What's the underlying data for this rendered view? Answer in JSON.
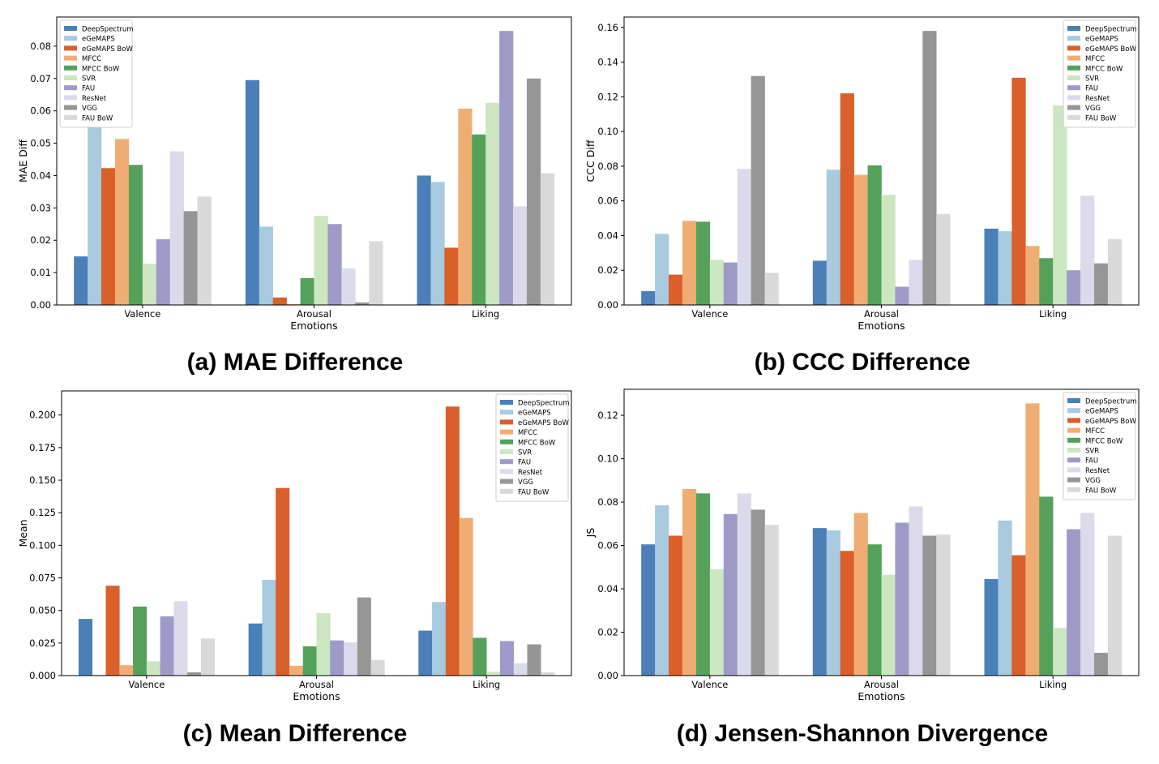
{
  "colors": [
    "#4a7fb8",
    "#a7cadf",
    "#d95f2b",
    "#f0ad73",
    "#55a15b",
    "#cbe6c1",
    "#9e9ac8",
    "#dadaeb",
    "#969696",
    "#d9d9d9"
  ],
  "chart_data": [
    {
      "type": "bar",
      "caption": "(a) MAE Difference",
      "xlabel": "Emotions",
      "ylabel": "MAE Diff",
      "ylim": [
        0,
        0.089
      ],
      "yticks": [
        "0.00",
        "0.01",
        "0.02",
        "0.03",
        "0.04",
        "0.05",
        "0.06",
        "0.07",
        "0.08"
      ],
      "legend_position": "top-left",
      "categories": [
        "Valence",
        "Arousal",
        "Liking"
      ],
      "series": [
        {
          "name": "DeepSpectrum",
          "values": [
            0.015,
            0.0695,
            0.04
          ]
        },
        {
          "name": "eGeMAPS",
          "values": [
            0.0553,
            0.0242,
            0.038
          ]
        },
        {
          "name": "eGeMAPS BoW",
          "values": [
            0.0423,
            0.0023,
            0.0177
          ]
        },
        {
          "name": "MFCC",
          "values": [
            0.0513,
            0.0003,
            0.0607
          ]
        },
        {
          "name": "MFCC BoW",
          "values": [
            0.0433,
            0.0083,
            0.0527
          ]
        },
        {
          "name": "SVR",
          "values": [
            0.0127,
            0.0275,
            0.0625
          ]
        },
        {
          "name": "FAU",
          "values": [
            0.0203,
            0.025,
            0.0847
          ]
        },
        {
          "name": "ResNet",
          "values": [
            0.0475,
            0.0113,
            0.0305
          ]
        },
        {
          "name": "VGG",
          "values": [
            0.029,
            0.0008,
            0.07
          ]
        },
        {
          "name": "FAU BoW",
          "values": [
            0.0335,
            0.0197,
            0.0407
          ]
        }
      ]
    },
    {
      "type": "bar",
      "caption": "(b) CCC Difference",
      "xlabel": "Emotions",
      "ylabel": "CCC Diff",
      "ylim": [
        0,
        0.166
      ],
      "yticks": [
        "0.00",
        "0.02",
        "0.04",
        "0.06",
        "0.08",
        "0.10",
        "0.12",
        "0.14",
        "0.16"
      ],
      "legend_position": "top-right",
      "categories": [
        "Valence",
        "Arousal",
        "Liking"
      ],
      "series": [
        {
          "name": "DeepSpectrum",
          "values": [
            0.008,
            0.0255,
            0.044
          ]
        },
        {
          "name": "eGeMAPS",
          "values": [
            0.041,
            0.078,
            0.0425
          ]
        },
        {
          "name": "eGeMAPS BoW",
          "values": [
            0.0175,
            0.122,
            0.131
          ]
        },
        {
          "name": "MFCC",
          "values": [
            0.0485,
            0.075,
            0.034
          ]
        },
        {
          "name": "MFCC BoW",
          "values": [
            0.048,
            0.0805,
            0.027
          ]
        },
        {
          "name": "SVR",
          "values": [
            0.026,
            0.0635,
            0.115
          ]
        },
        {
          "name": "FAU",
          "values": [
            0.0245,
            0.0105,
            0.02
          ]
        },
        {
          "name": "ResNet",
          "values": [
            0.0785,
            0.026,
            0.063
          ]
        },
        {
          "name": "VGG",
          "values": [
            0.132,
            0.158,
            0.024
          ]
        },
        {
          "name": "FAU BoW",
          "values": [
            0.0185,
            0.0525,
            0.038
          ]
        }
      ]
    },
    {
      "type": "bar",
      "caption": "(c) Mean Difference",
      "xlabel": "Emotions",
      "ylabel": "Mean",
      "ylim": [
        0,
        0.2185
      ],
      "yticks": [
        "0.000",
        "0.025",
        "0.050",
        "0.075",
        "0.100",
        "0.125",
        "0.150",
        "0.175",
        "0.200"
      ],
      "legend_position": "top-right",
      "categories": [
        "Valence",
        "Arousal",
        "Liking"
      ],
      "series": [
        {
          "name": "DeepSpectrum",
          "values": [
            0.0435,
            0.04,
            0.0345
          ]
        },
        {
          "name": "eGeMAPS",
          "values": [
            0.0005,
            0.0735,
            0.0565
          ]
        },
        {
          "name": "eGeMAPS BoW",
          "values": [
            0.069,
            0.144,
            0.2065
          ]
        },
        {
          "name": "MFCC",
          "values": [
            0.008,
            0.0075,
            0.121
          ]
        },
        {
          "name": "MFCC BoW",
          "values": [
            0.053,
            0.0225,
            0.029
          ]
        },
        {
          "name": "SVR",
          "values": [
            0.011,
            0.048,
            0.003
          ]
        },
        {
          "name": "FAU",
          "values": [
            0.0455,
            0.027,
            0.0265
          ]
        },
        {
          "name": "ResNet",
          "values": [
            0.057,
            0.0255,
            0.0095
          ]
        },
        {
          "name": "VGG",
          "values": [
            0.0025,
            0.06,
            0.024
          ]
        },
        {
          "name": "FAU BoW",
          "values": [
            0.0285,
            0.012,
            0.0025
          ]
        }
      ]
    },
    {
      "type": "bar",
      "caption": "(d) Jensen-Shannon Divergence",
      "xlabel": "Emotions",
      "ylabel": "JS",
      "ylim": [
        0,
        0.132
      ],
      "yticks": [
        "0.00",
        "0.02",
        "0.04",
        "0.06",
        "0.08",
        "0.10",
        "0.12"
      ],
      "legend_position": "top-right",
      "categories": [
        "Valence",
        "Arousal",
        "Liking"
      ],
      "series": [
        {
          "name": "DeepSpectrum",
          "values": [
            0.0605,
            0.068,
            0.0445
          ]
        },
        {
          "name": "eGeMAPS",
          "values": [
            0.0785,
            0.067,
            0.0715
          ]
        },
        {
          "name": "eGeMAPS BoW",
          "values": [
            0.0645,
            0.0575,
            0.0555
          ]
        },
        {
          "name": "MFCC",
          "values": [
            0.086,
            0.075,
            0.1255
          ]
        },
        {
          "name": "MFCC BoW",
          "values": [
            0.084,
            0.0605,
            0.0825
          ]
        },
        {
          "name": "SVR",
          "values": [
            0.049,
            0.0465,
            0.022
          ]
        },
        {
          "name": "FAU",
          "values": [
            0.0745,
            0.0705,
            0.0675
          ]
        },
        {
          "name": "ResNet",
          "values": [
            0.084,
            0.078,
            0.075
          ]
        },
        {
          "name": "VGG",
          "values": [
            0.0765,
            0.0645,
            0.0105
          ]
        },
        {
          "name": "FAU BoW",
          "values": [
            0.0695,
            0.065,
            0.0645
          ]
        }
      ]
    }
  ]
}
